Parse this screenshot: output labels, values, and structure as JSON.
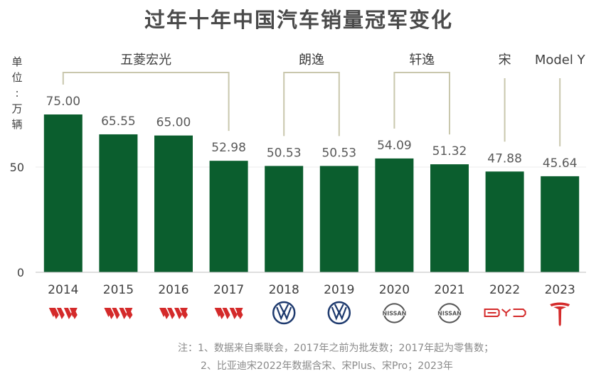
{
  "chart_data": {
    "type": "bar",
    "title": "过年十年中国汽车销量冠军变化",
    "ylabel_chars": [
      "单",
      "位",
      ":",
      "万",
      "辆"
    ],
    "categories": [
      "2014",
      "2015",
      "2016",
      "2017",
      "2018",
      "2019",
      "2020",
      "2021",
      "2022",
      "2023"
    ],
    "values": [
      75.0,
      65.55,
      65.0,
      52.98,
      50.53,
      50.53,
      54.09,
      51.32,
      47.88,
      45.64
    ],
    "value_labels": [
      "75.00",
      "65.55",
      "65.00",
      "52.98",
      "50.53",
      "50.53",
      "54.09",
      "51.32",
      "47.88",
      "45.64"
    ],
    "ylim": [
      0,
      100
    ],
    "yticks": [
      0,
      50
    ],
    "bar_color": "#0b5e2e",
    "grid": true,
    "groups": [
      {
        "name": "五菱宏光",
        "start": 0,
        "end": 3
      },
      {
        "name": "朗逸",
        "start": 4,
        "end": 5
      },
      {
        "name": "轩逸",
        "start": 6,
        "end": 7
      },
      {
        "name": "宋",
        "start": 8,
        "end": 8
      },
      {
        "name": "Model Y",
        "start": 9,
        "end": 9
      }
    ],
    "brand_icons": [
      "wuling-logo-icon",
      "wuling-logo-icon",
      "wuling-logo-icon",
      "wuling-logo-icon",
      "volkswagen-logo-icon",
      "volkswagen-logo-icon",
      "nissan-logo-icon",
      "nissan-logo-icon",
      "byd-logo-icon",
      "tesla-logo-icon"
    ],
    "brand_colors": {
      "wuling": "#d42a2a",
      "volkswagen": "#1e3a6e",
      "nissan": "#555555",
      "byd": "#d42a2a",
      "tesla": "#d42a2a"
    },
    "nissan_text": "NISSAN",
    "notes": [
      "注：1、数据来自乘联会，2017年之前为批发数；2017年起为零售数；",
      "2、比亚迪宋2022年数据含宋、宋Plus、宋Pro；2023年"
    ]
  }
}
